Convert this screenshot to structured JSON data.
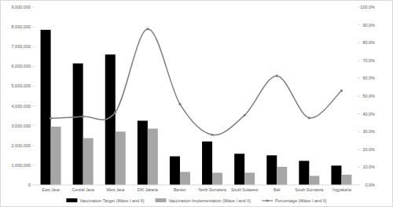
{
  "chart_data": {
    "type": "bar",
    "categories": [
      "East Java",
      "Central Java",
      "West Java",
      "DKI Jakarta",
      "Banten",
      "North Sumatera",
      "South Sulawesi",
      "Bali",
      "South Sumatera",
      "Yogyakarta"
    ],
    "series": [
      {
        "name": "Vaccination Target (Wave I and II)",
        "type": "bar",
        "color": "#000000",
        "values": [
          7850000,
          6150000,
          6600000,
          3250000,
          1450000,
          2200000,
          1580000,
          1500000,
          1220000,
          980000
        ]
      },
      {
        "name": "Vaccination Implementation (Wave I and II)",
        "type": "bar",
        "color": "#a6a6a6",
        "values": [
          2950000,
          2370000,
          2700000,
          2850000,
          660000,
          620000,
          620000,
          920000,
          460000,
          520000
        ]
      },
      {
        "name": "Percentage (Wave I and II)",
        "type": "line",
        "axis": "y2",
        "color": "#7f7f7f",
        "marker": "circle",
        "line_style": "smooth",
        "values": [
          37.5,
          38.5,
          40.9,
          87.7,
          45.5,
          28.2,
          39.2,
          61.3,
          37.7,
          53.0
        ]
      }
    ],
    "ylim": [
      0,
      9000000
    ],
    "yticks": [
      0,
      {
        "value": 1000000,
        "label": "1,000,000"
      },
      {
        "value": 2000000,
        "label": "2,000,000"
      },
      {
        "value": 3000000,
        "label": "3,000,000"
      },
      {
        "value": 4000000,
        "label": "4,000,000"
      },
      {
        "value": 5000000,
        "label": "5,000,000"
      },
      {
        "value": 6000000,
        "label": "6,000,000"
      },
      {
        "value": 7000000,
        "label": "7,000,000"
      },
      {
        "value": 8000000,
        "label": "8,000,000"
      },
      {
        "value": 9000000,
        "label": "9,000,000"
      }
    ],
    "y2lim": [
      0,
      100
    ],
    "y2ticks": [
      {
        "value": 0,
        "label": "0.0%"
      },
      {
        "value": 10,
        "label": "10.0%"
      },
      {
        "value": 20,
        "label": "20.0%"
      },
      {
        "value": 30,
        "label": "30.0%"
      },
      {
        "value": 40,
        "label": "40.0%"
      },
      {
        "value": 50,
        "label": "50.0%"
      },
      {
        "value": 60,
        "label": "60.0%"
      },
      {
        "value": 70,
        "label": "70.0%"
      },
      {
        "value": 80,
        "label": "80.0%"
      },
      {
        "value": 90,
        "label": "90.0%"
      },
      {
        "value": 100,
        "label": "100.0%"
      }
    ],
    "grid": false,
    "legend": "bottom"
  }
}
